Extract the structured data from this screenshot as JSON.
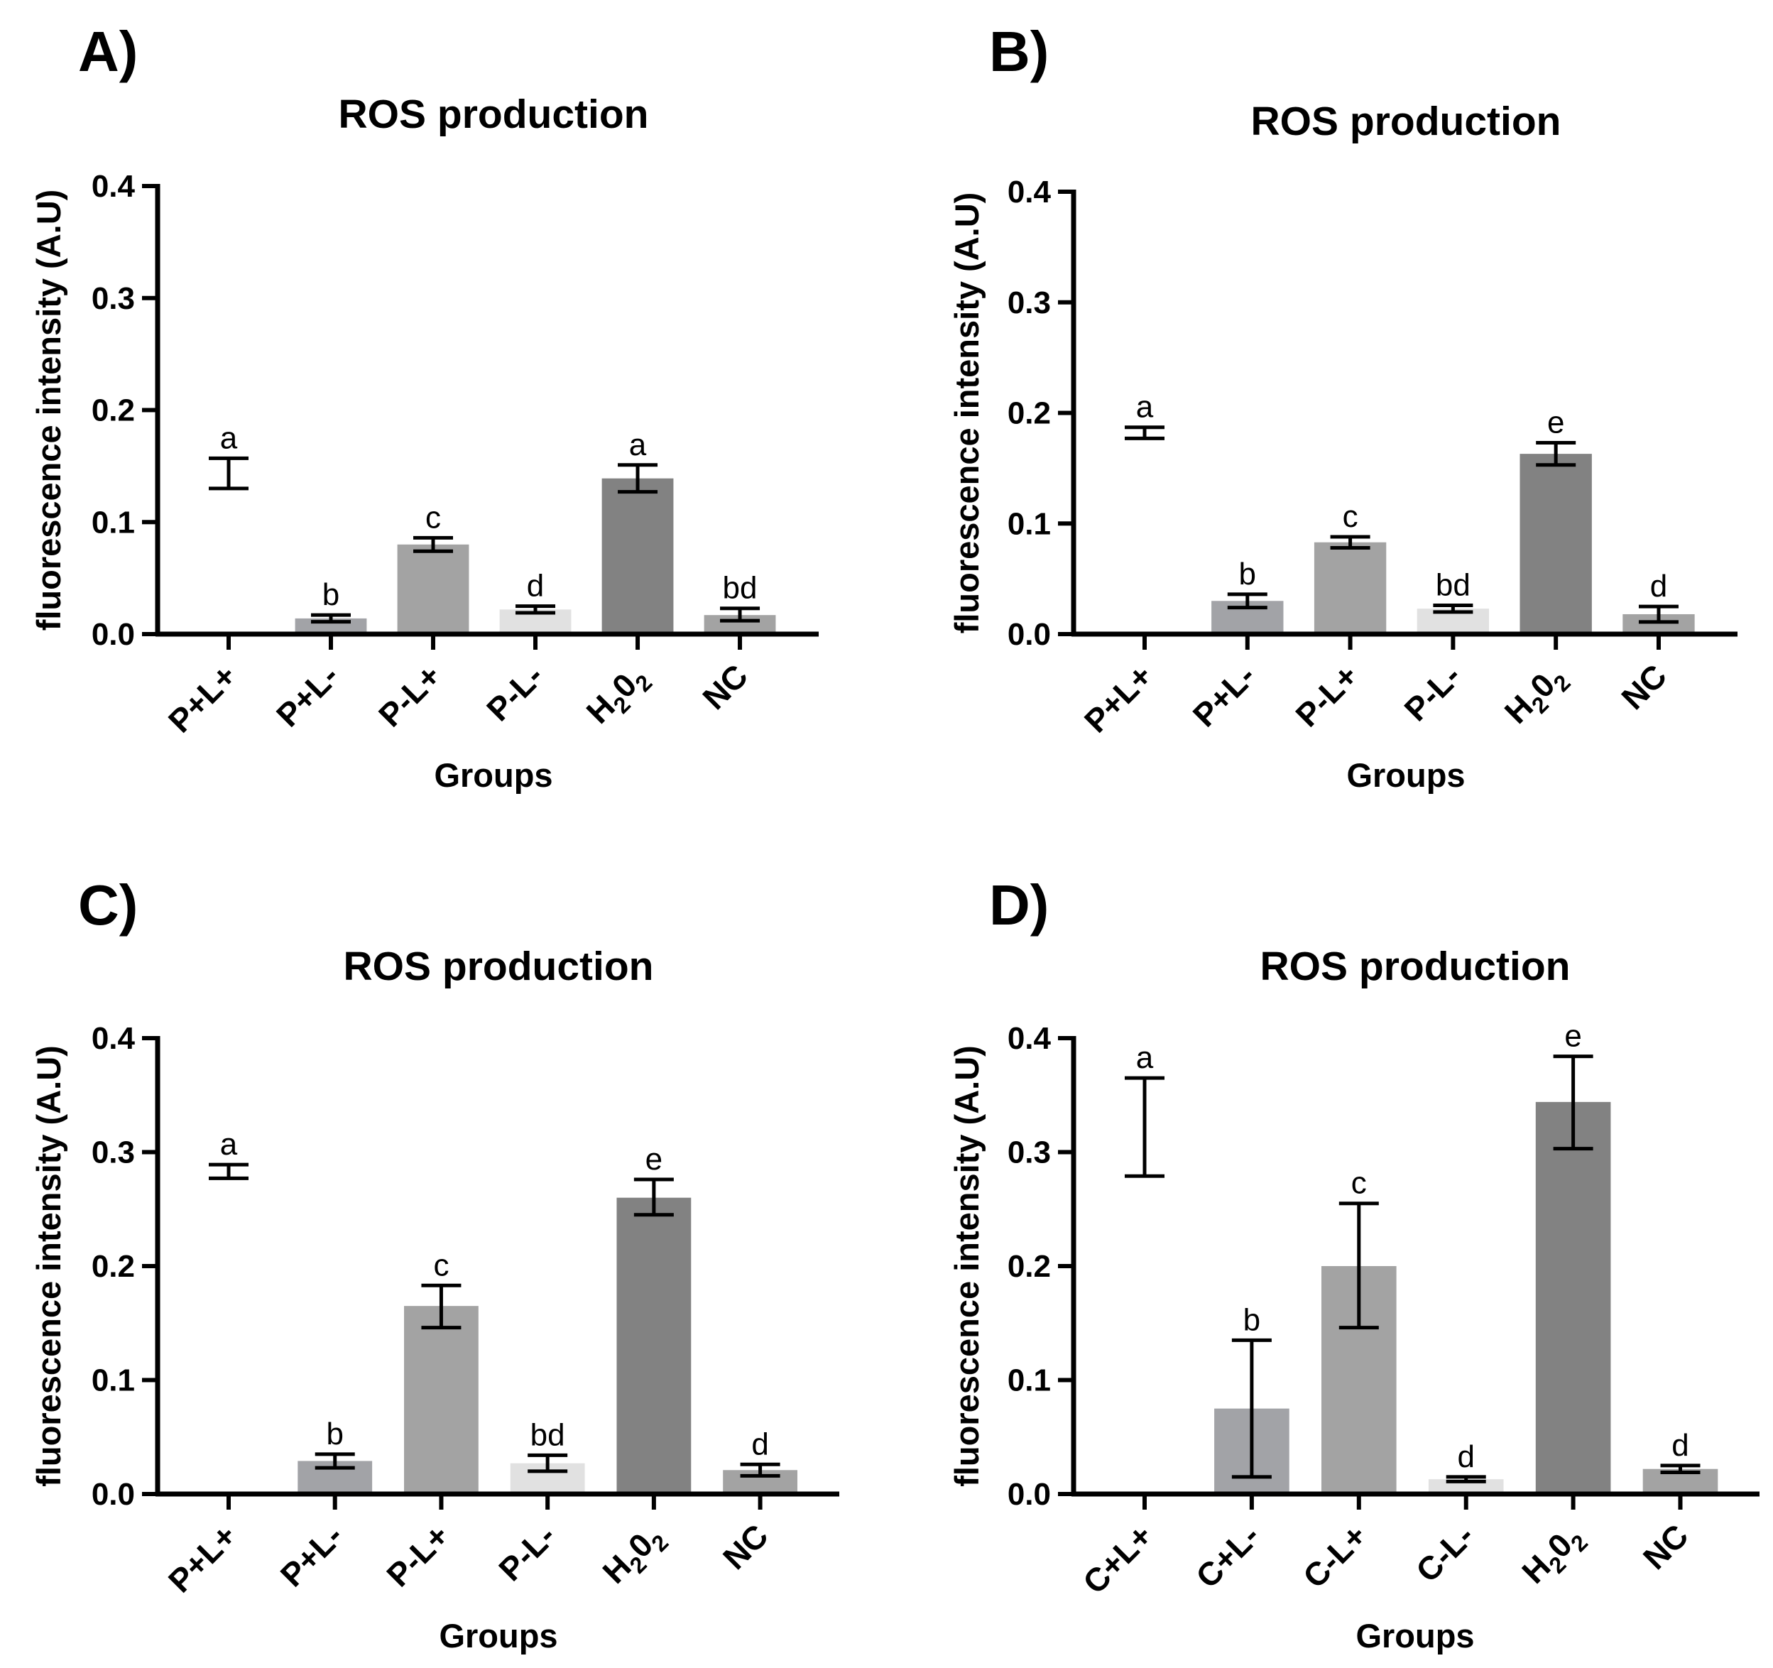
{
  "colors": {
    "bar_fill": [
      "#ffffff",
      "#a2a3a7",
      "#a3a3a3",
      "#e1e1e1",
      "#828282",
      "#a3a3a3"
    ],
    "axis": "#000000"
  },
  "chart_data": [
    {
      "panel": "A)",
      "type": "bar",
      "title": "ROS production",
      "xlabel": "Groups",
      "ylabel": "fluorescence intensity (A.U)",
      "ylim": [
        0,
        0.4
      ],
      "yticks": [
        "0.0",
        "0.1",
        "0.2",
        "0.3",
        "0.4"
      ],
      "categories": [
        {
          "label": "P+L+",
          "main": "P+L+",
          "sub": "",
          "tail": ""
        },
        {
          "label": "P+L-",
          "main": "P+L-",
          "sub": "",
          "tail": ""
        },
        {
          "label": "P-L+",
          "main": "P-L+",
          "sub": "",
          "tail": ""
        },
        {
          "label": "P-L-",
          "main": "P-L-",
          "sub": "",
          "tail": ""
        },
        {
          "label": "H2O2",
          "main": "H",
          "sub": "2",
          "tail": "0",
          "sub2": "2"
        },
        {
          "label": "NC",
          "main": "NC",
          "sub": "",
          "tail": ""
        }
      ],
      "values": [
        0.143,
        0.014,
        0.08,
        0.022,
        0.139,
        0.017
      ],
      "error_low": [
        0.13,
        0.011,
        0.074,
        0.019,
        0.127,
        0.012
      ],
      "error_high": [
        0.157,
        0.017,
        0.086,
        0.025,
        0.151,
        0.023
      ],
      "significance": [
        "a",
        "b",
        "c",
        "d",
        "a",
        "bd"
      ]
    },
    {
      "panel": "B)",
      "type": "bar",
      "title": "ROS production",
      "xlabel": "Groups",
      "ylabel": "fluorescence intensity (A.U)",
      "ylim": [
        0,
        0.4
      ],
      "yticks": [
        "0.0",
        "0.1",
        "0.2",
        "0.3",
        "0.4"
      ],
      "categories": [
        {
          "label": "P+L+",
          "main": "P+L+",
          "sub": "",
          "tail": ""
        },
        {
          "label": "P+L-",
          "main": "P+L-",
          "sub": "",
          "tail": ""
        },
        {
          "label": "P-L+",
          "main": "P-L+",
          "sub": "",
          "tail": ""
        },
        {
          "label": "P-L-",
          "main": "P-L-",
          "sub": "",
          "tail": ""
        },
        {
          "label": "H2O2",
          "main": "H",
          "sub": "2",
          "tail": "0",
          "sub2": "2"
        },
        {
          "label": "NC",
          "main": "NC",
          "sub": "",
          "tail": ""
        }
      ],
      "values": [
        0.182,
        0.03,
        0.083,
        0.023,
        0.163,
        0.018
      ],
      "error_low": [
        0.177,
        0.024,
        0.078,
        0.02,
        0.153,
        0.011
      ],
      "error_high": [
        0.187,
        0.036,
        0.088,
        0.026,
        0.173,
        0.025
      ],
      "significance": [
        "a",
        "b",
        "c",
        "bd",
        "e",
        "d"
      ]
    },
    {
      "panel": "C)",
      "type": "bar",
      "title": "ROS production",
      "xlabel": "Groups",
      "ylabel": "fluorescence intensity (A.U)",
      "ylim": [
        0,
        0.4
      ],
      "yticks": [
        "0.0",
        "0.1",
        "0.2",
        "0.3",
        "0.4"
      ],
      "categories": [
        {
          "label": "P+L+",
          "main": "P+L+",
          "sub": "",
          "tail": ""
        },
        {
          "label": "P+L-",
          "main": "P+L-",
          "sub": "",
          "tail": ""
        },
        {
          "label": "P-L+",
          "main": "P-L+",
          "sub": "",
          "tail": ""
        },
        {
          "label": "P-L-",
          "main": "P-L-",
          "sub": "",
          "tail": ""
        },
        {
          "label": "H2O2",
          "main": "H",
          "sub": "2",
          "tail": "0",
          "sub2": "2"
        },
        {
          "label": "NC",
          "main": "NC",
          "sub": "",
          "tail": ""
        }
      ],
      "values": [
        0.283,
        0.029,
        0.165,
        0.027,
        0.26,
        0.021
      ],
      "error_low": [
        0.277,
        0.023,
        0.146,
        0.02,
        0.245,
        0.016
      ],
      "error_high": [
        0.289,
        0.035,
        0.183,
        0.034,
        0.276,
        0.026
      ],
      "significance": [
        "a",
        "b",
        "c",
        "bd",
        "e",
        "d"
      ]
    },
    {
      "panel": "D)",
      "type": "bar",
      "title": "ROS production",
      "xlabel": "Groups",
      "ylabel": "fluorescence intensity (A.U)",
      "ylim": [
        0,
        0.4
      ],
      "yticks": [
        "0.0",
        "0.1",
        "0.2",
        "0.3",
        "0.4"
      ],
      "categories": [
        {
          "label": "C+L+",
          "main": "C+L+",
          "sub": "",
          "tail": ""
        },
        {
          "label": "C+L-",
          "main": "C+L-",
          "sub": "",
          "tail": ""
        },
        {
          "label": "C-L+",
          "main": "C-L+",
          "sub": "",
          "tail": ""
        },
        {
          "label": "C-L-",
          "main": "C-L-",
          "sub": "",
          "tail": ""
        },
        {
          "label": "H2O2",
          "main": "H",
          "sub": "2",
          "tail": "0",
          "sub2": "2"
        },
        {
          "label": "NC",
          "main": "NC",
          "sub": "",
          "tail": ""
        }
      ],
      "values": [
        0.322,
        0.075,
        0.2,
        0.013,
        0.344,
        0.022
      ],
      "error_low": [
        0.279,
        0.015,
        0.146,
        0.011,
        0.303,
        0.019
      ],
      "error_high": [
        0.365,
        0.135,
        0.255,
        0.015,
        0.384,
        0.025
      ],
      "significance": [
        "a",
        "b",
        "c",
        "d",
        "e",
        "d"
      ]
    }
  ]
}
